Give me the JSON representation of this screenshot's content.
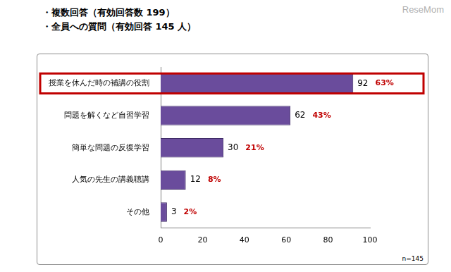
{
  "chart_data": {
    "type": "bar",
    "orientation": "horizontal",
    "subtitle": [
      "・複数回答（有効回答数 199）",
      "・全員への質問（有効回答 145 人）"
    ],
    "categories": [
      "授業を休んだ時の補講の役割",
      "問題を解くなど自習学習",
      "簡単な問題の反復学習",
      "人気の先生の講義聴講",
      "その他"
    ],
    "values": [
      92,
      62,
      30,
      12,
      3
    ],
    "data_labels": true,
    "percent_labels": [
      "63%",
      "43%",
      "21%",
      "8%",
      "2%"
    ],
    "highlight": "授業を休んだ時の補講の役割",
    "color": "#6a4c9c",
    "xlim": [
      0,
      100
    ],
    "xticks": [
      0,
      20,
      40,
      60,
      80,
      100
    ],
    "grid": false,
    "annotations": [
      "n=145"
    ],
    "watermark": "ReseMom"
  }
}
